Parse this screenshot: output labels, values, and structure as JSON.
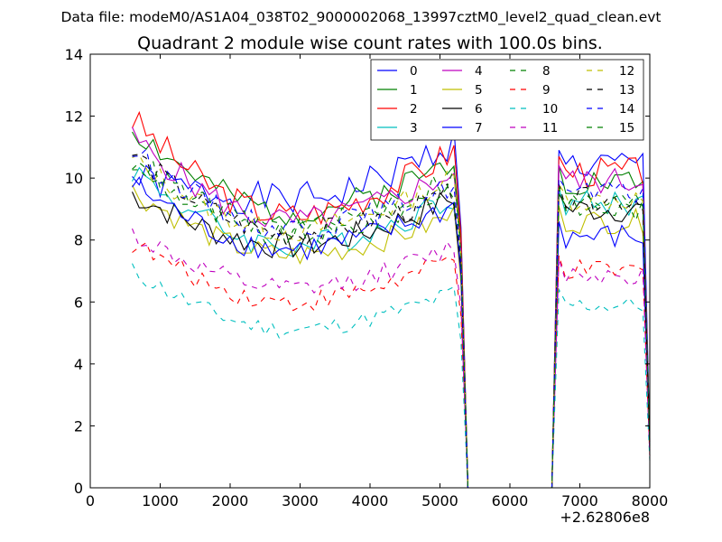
{
  "chart_data": {
    "type": "line",
    "suptitle": "Data file: modeM0/AS1A04_038T02_9000002068_13997cztM0_level2_quad_clean.evt",
    "title": "Quadrant 2 module wise count rates with 100.0s bins.",
    "xlabel": "",
    "ylabel": "",
    "x_offset_label": "+2.62806e8",
    "xlim": [
      0,
      8000
    ],
    "ylim": [
      0,
      14
    ],
    "xticks": [
      0,
      1000,
      2000,
      3000,
      4000,
      5000,
      6000,
      7000,
      8000
    ],
    "yticks": [
      0,
      2,
      4,
      6,
      8,
      10,
      12,
      14
    ],
    "xtick_labels": [
      "0",
      "1000",
      "2000",
      "3000",
      "4000",
      "5000",
      "6000",
      "7000",
      "8000"
    ],
    "ytick_labels": [
      "0",
      "2",
      "4",
      "6",
      "8",
      "10",
      "12",
      "14"
    ],
    "grid": false,
    "legend_position": "top-right",
    "legend_columns": 4,
    "colors": {
      "blue": "#0000ff",
      "green": "#008000",
      "red": "#ff0000",
      "cyan": "#00bfbf",
      "magenta": "#bf00bf",
      "olive": "#bfbf00",
      "black": "#000000"
    },
    "gap_x": [
      5400,
      6600
    ],
    "drop_points_x": [
      5300,
      5400,
      6600,
      6700,
      7900,
      8000
    ],
    "series": [
      {
        "name": "0",
        "color": "#0000ff",
        "dash": "solid",
        "start": 10.0,
        "mid": 9.3,
        "end": 11.2,
        "post": 10.4,
        "noise": 0.55,
        "seed": 1
      },
      {
        "name": "1",
        "color": "#008000",
        "dash": "solid",
        "start": 11.6,
        "mid": 8.9,
        "end": 10.6,
        "post": 9.9,
        "noise": 0.45,
        "seed": 2
      },
      {
        "name": "2",
        "color": "#ff0000",
        "dash": "solid",
        "start": 11.9,
        "mid": 8.8,
        "end": 10.9,
        "post": 10.2,
        "noise": 0.5,
        "seed": 3
      },
      {
        "name": "3",
        "color": "#00bfbf",
        "dash": "solid",
        "start": 10.3,
        "mid": 7.8,
        "end": 9.4,
        "post": 9.2,
        "noise": 0.45,
        "seed": 4
      },
      {
        "name": "4",
        "color": "#bf00bf",
        "dash": "solid",
        "start": 11.3,
        "mid": 8.6,
        "end": 10.2,
        "post": 9.9,
        "noise": 0.45,
        "seed": 5
      },
      {
        "name": "5",
        "color": "#bfbf00",
        "dash": "solid",
        "start": 9.6,
        "mid": 7.5,
        "end": 8.8,
        "post": 8.6,
        "noise": 0.4,
        "seed": 6
      },
      {
        "name": "6",
        "color": "#000000",
        "dash": "solid",
        "start": 9.5,
        "mid": 7.8,
        "end": 9.4,
        "post": 9.0,
        "noise": 0.45,
        "seed": 7
      },
      {
        "name": "7",
        "color": "#0000ff",
        "dash": "solid",
        "start": 9.8,
        "mid": 7.7,
        "end": 9.1,
        "post": 8.1,
        "noise": 0.45,
        "seed": 8
      },
      {
        "name": "8",
        "color": "#008000",
        "dash": "dashed",
        "start": 10.5,
        "mid": 8.1,
        "end": 9.7,
        "post": 9.0,
        "noise": 0.4,
        "seed": 9
      },
      {
        "name": "9",
        "color": "#ff0000",
        "dash": "dashed",
        "start": 7.9,
        "mid": 6.0,
        "end": 7.4,
        "post": 7.0,
        "noise": 0.35,
        "seed": 10
      },
      {
        "name": "10",
        "color": "#00bfbf",
        "dash": "dashed",
        "start": 7.0,
        "mid": 5.1,
        "end": 6.3,
        "post": 5.9,
        "noise": 0.3,
        "seed": 11
      },
      {
        "name": "11",
        "color": "#bf00bf",
        "dash": "dashed",
        "start": 8.2,
        "mid": 6.4,
        "end": 7.8,
        "post": 6.9,
        "noise": 0.35,
        "seed": 12
      },
      {
        "name": "12",
        "color": "#bfbf00",
        "dash": "dashed",
        "start": 10.6,
        "mid": 8.3,
        "end": 10.0,
        "post": 9.3,
        "noise": 0.4,
        "seed": 13
      },
      {
        "name": "13",
        "color": "#000000",
        "dash": "dashed",
        "start": 10.8,
        "mid": 8.2,
        "end": 9.5,
        "post": 9.3,
        "noise": 0.4,
        "seed": 14
      },
      {
        "name": "14",
        "color": "#0000ff",
        "dash": "dashed",
        "start": 10.9,
        "mid": 8.4,
        "end": 9.8,
        "post": 9.5,
        "noise": 0.4,
        "seed": 15
      },
      {
        "name": "15",
        "color": "#008000",
        "dash": "dashed",
        "start": 10.6,
        "mid": 8.4,
        "end": 10.1,
        "post": 9.2,
        "noise": 0.4,
        "seed": 16
      }
    ]
  }
}
